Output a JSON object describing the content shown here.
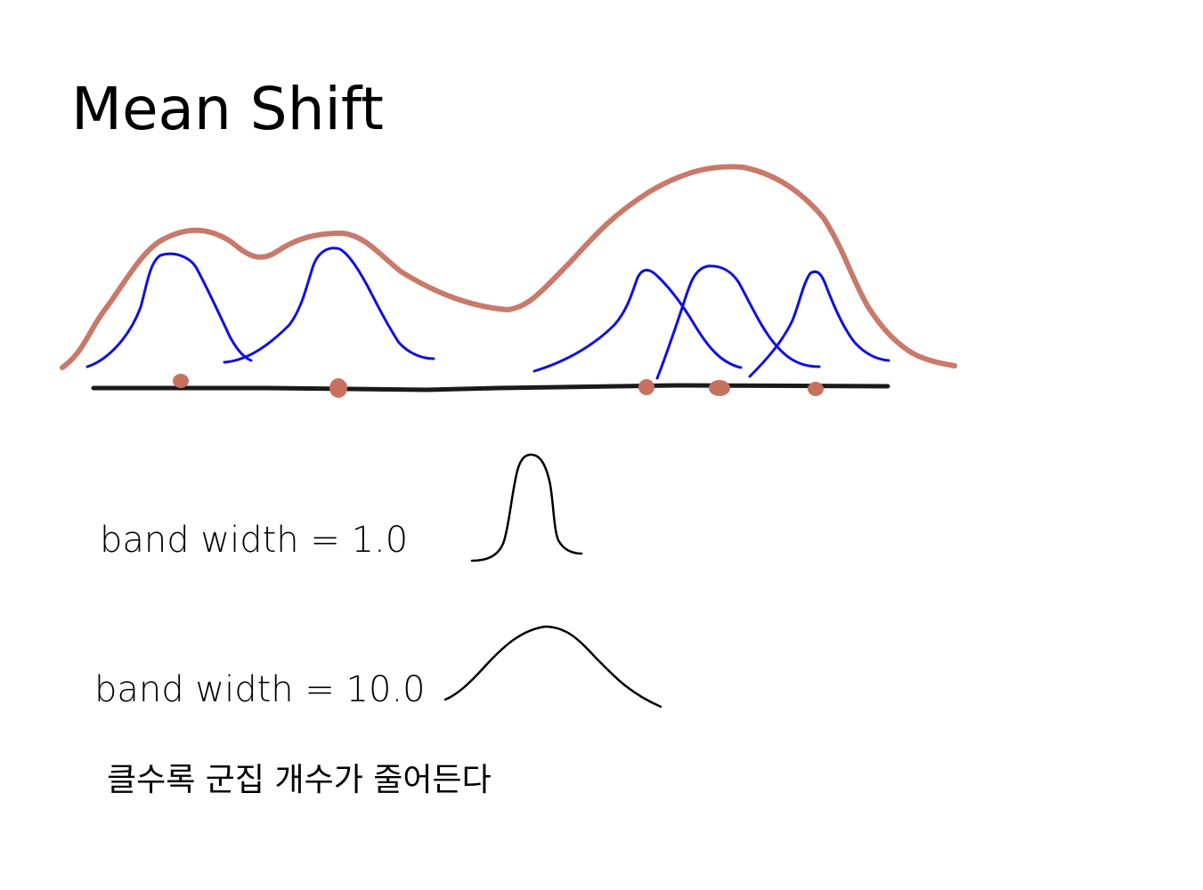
{
  "title": "Mean Shift",
  "labels": {
    "bandwidth_small": "band width = 1.0",
    "bandwidth_large": "band width = 10.0",
    "note": "클수록 군집 개수가 줄어든다"
  },
  "colors": {
    "density_curve": "#c87a6a",
    "kernels": "#1010e0",
    "data_points": "#c8705e",
    "axis": "#1a1a1a",
    "ink": "#000000"
  }
}
